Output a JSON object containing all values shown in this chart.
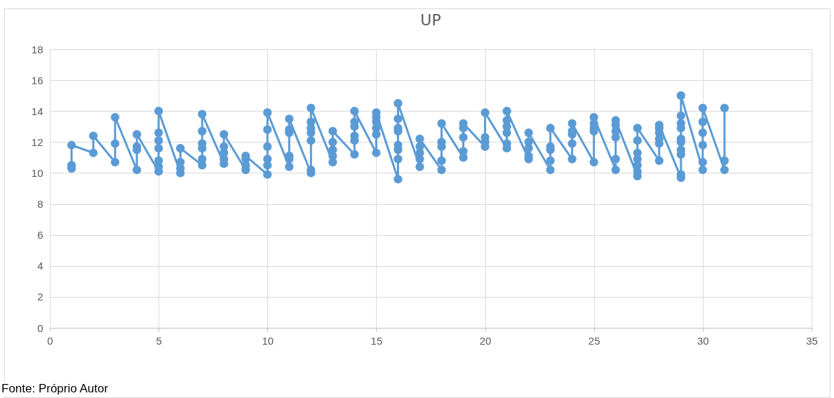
{
  "chart_data": {
    "type": "line",
    "title": "UP",
    "x": [
      1,
      1,
      1,
      2,
      2,
      3,
      3,
      3,
      4,
      4,
      4,
      4,
      5,
      5,
      5,
      5,
      5,
      5,
      5,
      6,
      6,
      6,
      6,
      7,
      7,
      7,
      7,
      7,
      7,
      8,
      8,
      8,
      8,
      8,
      9,
      9,
      9,
      9,
      10,
      10,
      10,
      10,
      10,
      10,
      11,
      11,
      11,
      11,
      11,
      11,
      12,
      12,
      12,
      12,
      12,
      12,
      12,
      13,
      13,
      13,
      13,
      13,
      14,
      14,
      14,
      14,
      14,
      14,
      15,
      15,
      15,
      15,
      15,
      15,
      16,
      16,
      16,
      16,
      16,
      16,
      16,
      16,
      17,
      17,
      17,
      17,
      17,
      18,
      18,
      18,
      18,
      18,
      19,
      19,
      19,
      19,
      19,
      20,
      20,
      20,
      20,
      21,
      21,
      21,
      21,
      21,
      21,
      22,
      22,
      22,
      22,
      22,
      23,
      23,
      23,
      23,
      23,
      24,
      24,
      24,
      24,
      24,
      25,
      25,
      25,
      25,
      25,
      26,
      26,
      26,
      26,
      26,
      26,
      27,
      27,
      27,
      27,
      27,
      27,
      27,
      28,
      28,
      28,
      28,
      28,
      28,
      29,
      29,
      29,
      29,
      29,
      29,
      29,
      29,
      29,
      29,
      30,
      30,
      30,
      30,
      30,
      30,
      31,
      31,
      31
    ],
    "series": [
      {
        "color": "#5b9bd5",
        "values": [
          10.3,
          10.5,
          11.8,
          11.3,
          12.4,
          10.7,
          11.9,
          13.6,
          10.2,
          11.5,
          11.7,
          12.5,
          10.1,
          10.4,
          10.8,
          11.6,
          12.1,
          12.6,
          14.0,
          10.0,
          10.3,
          10.7,
          11.6,
          10.5,
          10.9,
          11.6,
          11.9,
          12.7,
          13.8,
          10.6,
          10.9,
          11.3,
          11.7,
          12.5,
          10.2,
          10.5,
          10.9,
          11.1,
          9.9,
          10.5,
          10.9,
          11.7,
          12.8,
          13.9,
          10.4,
          10.9,
          11.1,
          12.6,
          12.8,
          13.5,
          10.0,
          10.2,
          12.1,
          12.6,
          12.9,
          13.3,
          14.2,
          10.7,
          11.1,
          11.5,
          12.0,
          12.7,
          11.2,
          12.1,
          12.4,
          13.0,
          13.3,
          14.0,
          11.3,
          12.5,
          12.9,
          13.3,
          13.6,
          13.9,
          9.6,
          10.9,
          11.5,
          11.8,
          12.7,
          12.9,
          13.5,
          14.5,
          10.4,
          10.9,
          11.3,
          11.7,
          12.2,
          10.2,
          10.8,
          11.7,
          12.0,
          13.2,
          11.0,
          11.4,
          12.3,
          12.9,
          13.2,
          11.7,
          12.0,
          12.3,
          13.9,
          11.6,
          11.9,
          12.6,
          13.0,
          13.4,
          14.0,
          10.9,
          11.1,
          11.6,
          12.0,
          12.6,
          10.2,
          10.8,
          11.5,
          11.7,
          12.9,
          10.9,
          11.9,
          12.5,
          12.7,
          13.2,
          10.7,
          12.7,
          12.9,
          13.2,
          13.6,
          10.2,
          10.9,
          12.3,
          12.7,
          13.1,
          13.4,
          9.8,
          10.1,
          10.5,
          10.9,
          11.3,
          12.1,
          12.9,
          10.8,
          11.9,
          12.2,
          12.6,
          12.9,
          13.1,
          9.7,
          9.9,
          11.2,
          11.5,
          12.0,
          12.2,
          12.9,
          13.2,
          13.7,
          15.0,
          10.2,
          10.7,
          11.8,
          12.6,
          13.3,
          14.2,
          10.2,
          10.8,
          14.2
        ]
      }
    ],
    "xlim": [
      0,
      35
    ],
    "xticks": [
      0,
      5,
      10,
      15,
      20,
      25,
      30,
      35
    ],
    "ylim": [
      0,
      18
    ],
    "yticks": [
      0,
      2,
      4,
      6,
      8,
      10,
      12,
      14,
      16,
      18
    ],
    "grid": true,
    "marker": "circle",
    "line_style": "solid",
    "annotations": [
      "Fonte: Próprio Autor"
    ]
  }
}
